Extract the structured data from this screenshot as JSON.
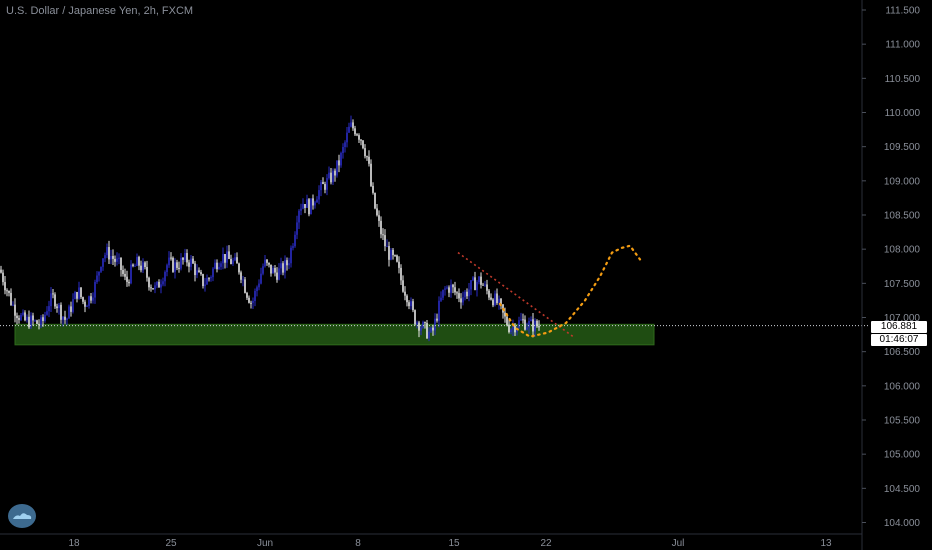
{
  "header": {
    "title": "U.S. Dollar / Japanese Yen, 2h, FXCM"
  },
  "price_tags": {
    "last_price": "106.881",
    "countdown": "01:46:07"
  },
  "colors": {
    "background": "#000000",
    "candle_up": "#2a2dc8",
    "candle_down": "#e8e8e8",
    "support_zone": "#1f4d12",
    "trendline": "#c0392b",
    "projection": "#f39c12",
    "axis_text": "#8a8f99"
  },
  "icons": {
    "logo": "cloud-logo-icon"
  },
  "chart_data": {
    "type": "candlestick",
    "title": "U.S. Dollar / Japanese Yen, 2h, FXCM",
    "xlabel": "",
    "ylabel": "",
    "ylim": [
      103.85,
      111.65
    ],
    "y_ticks": [
      "104.000",
      "104.500",
      "105.000",
      "105.500",
      "106.000",
      "106.500",
      "107.000",
      "107.500",
      "108.000",
      "108.500",
      "109.000",
      "109.500",
      "110.000",
      "110.500",
      "111.000",
      "111.500"
    ],
    "x_ticks": [
      "18",
      "25",
      "Jun",
      "8",
      "15",
      "22",
      "Jul",
      "13"
    ],
    "grid": false,
    "last_price": 106.881,
    "series": [
      {
        "name": "",
        "path": [
          [
            0,
            107.7
          ],
          [
            6,
            107.45
          ],
          [
            12,
            107.2
          ],
          [
            18,
            107.05
          ],
          [
            24,
            106.95
          ],
          [
            30,
            106.95
          ],
          [
            36,
            106.92
          ],
          [
            42,
            106.9
          ],
          [
            48,
            107.2
          ],
          [
            54,
            107.3
          ],
          [
            60,
            107.1
          ],
          [
            66,
            106.95
          ],
          [
            72,
            107.2
          ],
          [
            78,
            107.4
          ],
          [
            84,
            107.2
          ],
          [
            90,
            107.3
          ],
          [
            96,
            107.5
          ],
          [
            102,
            107.9
          ],
          [
            108,
            107.95
          ],
          [
            114,
            107.85
          ],
          [
            120,
            107.75
          ],
          [
            126,
            107.5
          ],
          [
            132,
            107.7
          ],
          [
            138,
            107.8
          ],
          [
            144,
            107.7
          ],
          [
            150,
            107.5
          ],
          [
            156,
            107.4
          ],
          [
            162,
            107.6
          ],
          [
            168,
            107.8
          ],
          [
            174,
            107.75
          ],
          [
            180,
            107.8
          ],
          [
            186,
            107.85
          ],
          [
            192,
            107.8
          ],
          [
            198,
            107.6
          ],
          [
            204,
            107.5
          ],
          [
            210,
            107.6
          ],
          [
            216,
            107.8
          ],
          [
            222,
            107.9
          ],
          [
            228,
            107.85
          ],
          [
            234,
            107.8
          ],
          [
            240,
            107.7
          ],
          [
            246,
            107.4
          ],
          [
            252,
            107.2
          ],
          [
            258,
            107.5
          ],
          [
            264,
            107.8
          ],
          [
            270,
            107.7
          ],
          [
            276,
            107.65
          ],
          [
            282,
            107.7
          ],
          [
            288,
            107.8
          ],
          [
            294,
            108.2
          ],
          [
            298,
            108.6
          ],
          [
            304,
            108.7
          ],
          [
            310,
            108.6
          ],
          [
            316,
            108.8
          ],
          [
            322,
            108.9
          ],
          [
            328,
            109.0
          ],
          [
            334,
            109.1
          ],
          [
            340,
            109.3
          ],
          [
            346,
            109.6
          ],
          [
            350,
            109.8
          ],
          [
            356,
            109.75
          ],
          [
            362,
            109.6
          ],
          [
            368,
            109.3
          ],
          [
            372,
            108.8
          ],
          [
            378,
            108.4
          ],
          [
            384,
            108.1
          ],
          [
            390,
            107.9
          ],
          [
            396,
            107.8
          ],
          [
            402,
            107.5
          ],
          [
            408,
            107.3
          ],
          [
            414,
            107.0
          ],
          [
            420,
            106.9
          ],
          [
            426,
            106.8
          ],
          [
            432,
            106.75
          ],
          [
            438,
            107.1
          ],
          [
            444,
            107.4
          ],
          [
            450,
            107.45
          ],
          [
            456,
            107.35
          ],
          [
            462,
            107.3
          ],
          [
            468,
            107.4
          ],
          [
            474,
            107.5
          ],
          [
            480,
            107.55
          ],
          [
            486,
            107.4
          ],
          [
            492,
            107.3
          ],
          [
            498,
            107.2
          ],
          [
            504,
            107.0
          ],
          [
            510,
            106.85
          ],
          [
            516,
            106.9
          ],
          [
            522,
            106.95
          ],
          [
            528,
            106.9
          ],
          [
            534,
            106.88
          ],
          [
            540,
            106.881
          ]
        ]
      }
    ],
    "support_zone": {
      "x_start": 15,
      "x_end": 654,
      "y_low": 106.6,
      "y_high": 106.9
    },
    "trendline": {
      "from": [
        458,
        107.95
      ],
      "to": [
        575,
        106.7
      ]
    },
    "projection": {
      "name": "",
      "points": [
        [
          500,
          107.2
        ],
        [
          515,
          106.85
        ],
        [
          530,
          106.72
        ],
        [
          548,
          106.78
        ],
        [
          566,
          106.92
        ],
        [
          585,
          107.25
        ],
        [
          600,
          107.6
        ],
        [
          612,
          107.95
        ],
        [
          622,
          108.02
        ],
        [
          630,
          108.05
        ],
        [
          640,
          107.85
        ]
      ]
    }
  }
}
